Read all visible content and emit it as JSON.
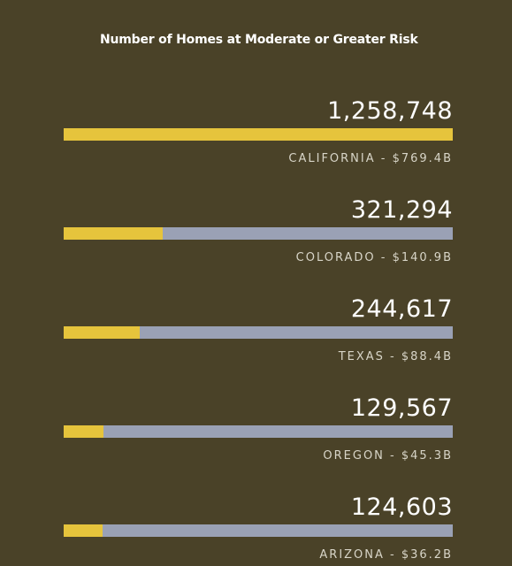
{
  "colors": {
    "background": "#4a4228",
    "bar_fill": "#e6c43c",
    "bar_track": "#9aa1b5",
    "text": "#ffffff",
    "label_text": "#d8d5c8"
  },
  "chart_data": {
    "type": "bar",
    "orientation": "horizontal",
    "title": "Number of Homes at Moderate or Greater Risk",
    "categories": [
      "CALIFORNIA",
      "COLORADO",
      "TEXAS",
      "OREGON",
      "ARIZONA"
    ],
    "values": [
      1258748,
      321294,
      244617,
      129567,
      124603
    ],
    "value_labels": [
      "1,258,748",
      "321,294",
      "244,617",
      "129,567",
      "124,603"
    ],
    "category_labels": [
      "CALIFORNIA - $769.4B",
      "COLORADO - $140.9B",
      "TEXAS - $88.4B",
      "OREGON - $45.3B",
      "ARIZONA - $36.2B"
    ],
    "xlim": [
      0,
      1258748
    ],
    "grid": false,
    "legend": "none"
  }
}
